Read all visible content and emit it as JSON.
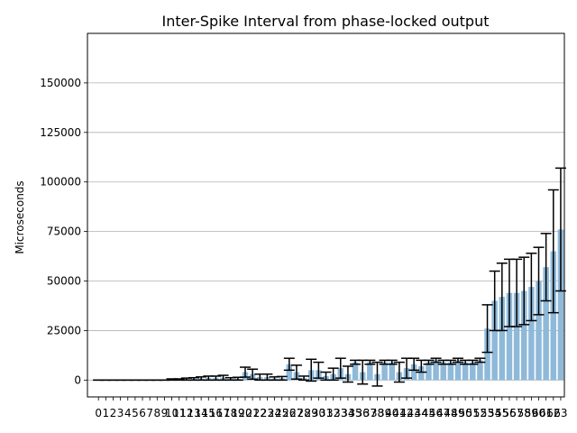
{
  "chart_data": {
    "type": "bar",
    "title": "Inter-Spike Interval from phase-locked output",
    "xlabel": "",
    "ylabel": "Microseconds",
    "ylim": [
      -8500,
      175000
    ],
    "xlim": [
      -1.5,
      63.5
    ],
    "grid": "horizontal",
    "bar_color": "#8fb9d9",
    "error_color": "#000000",
    "grid_color": "#b0b0b0",
    "yticks": [
      0,
      25000,
      50000,
      75000,
      100000,
      125000,
      150000
    ],
    "ytick_labels": [
      "0",
      "25000",
      "50000",
      "75000",
      "100000",
      "125000",
      "150000"
    ],
    "categories": [
      "0",
      "1",
      "2",
      "3",
      "4",
      "5",
      "6",
      "7",
      "8",
      "9",
      "10",
      "11",
      "12",
      "13",
      "14",
      "15",
      "16",
      "17",
      "18",
      "19",
      "20",
      "21",
      "22",
      "23",
      "24",
      "25",
      "26",
      "27",
      "28",
      "29",
      "30",
      "31",
      "32",
      "33",
      "34",
      "35",
      "36",
      "37",
      "38",
      "39",
      "40",
      "41",
      "42",
      "43",
      "44",
      "45",
      "46",
      "47",
      "48",
      "49",
      "50",
      "51",
      "52",
      "53",
      "54",
      "55",
      "56",
      "57",
      "58",
      "59",
      "60",
      "61",
      "62",
      "63"
    ],
    "values": [
      0,
      0,
      0,
      0,
      0,
      0,
      0,
      0,
      0,
      0,
      300,
      300,
      500,
      600,
      800,
      1000,
      1000,
      1200,
      600,
      700,
      4000,
      3000,
      1500,
      1500,
      800,
      900,
      8000,
      4000,
      1000,
      5000,
      5000,
      2000,
      3000,
      6000,
      3000,
      9000,
      4000,
      9000,
      3000,
      9000,
      9000,
      4000,
      6000,
      8000,
      7000,
      9000,
      10000,
      9000,
      9000,
      10000,
      9000,
      9000,
      10000,
      26000,
      40000,
      42000,
      44000,
      44000,
      45000,
      47000,
      50000,
      57000,
      65000,
      76000
    ],
    "errors": [
      0,
      0,
      0,
      0,
      0,
      0,
      0,
      0,
      0,
      0,
      300,
      300,
      500,
      600,
      800,
      1000,
      1000,
      1200,
      600,
      700,
      2500,
      2500,
      1500,
      1500,
      800,
      900,
      3000,
      3500,
      1000,
      5500,
      4000,
      2000,
      3000,
      5000,
      4000,
      1000,
      6000,
      1000,
      6000,
      1000,
      1000,
      5000,
      5000,
      3000,
      3000,
      1000,
      1000,
      1000,
      1000,
      1000,
      1000,
      1000,
      1000,
      12000,
      15000,
      17000,
      17000,
      17000,
      17000,
      17000,
      17000,
      17000,
      31000,
      31000
    ]
  }
}
